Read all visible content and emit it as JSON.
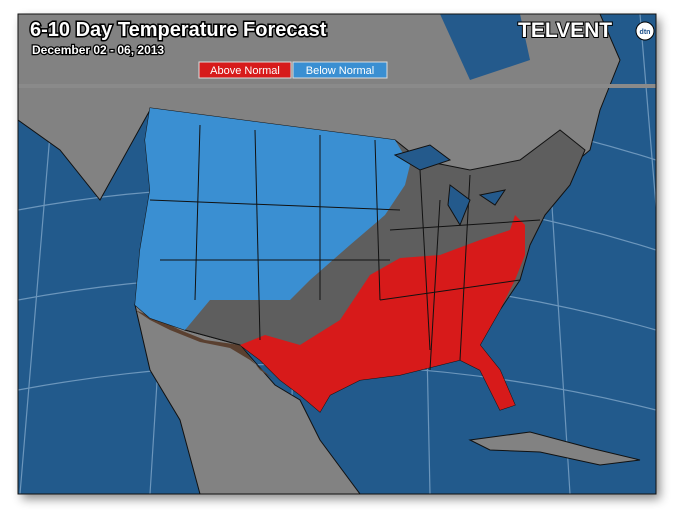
{
  "header": {
    "title": "6-10 Day Temperature Forecast",
    "subtitle": "December 02 - 06, 2013"
  },
  "legend": {
    "items": [
      "Above Normal",
      "Below Normal"
    ]
  },
  "logo": {
    "brand": "TELVENT",
    "badge": "dtn"
  }
}
